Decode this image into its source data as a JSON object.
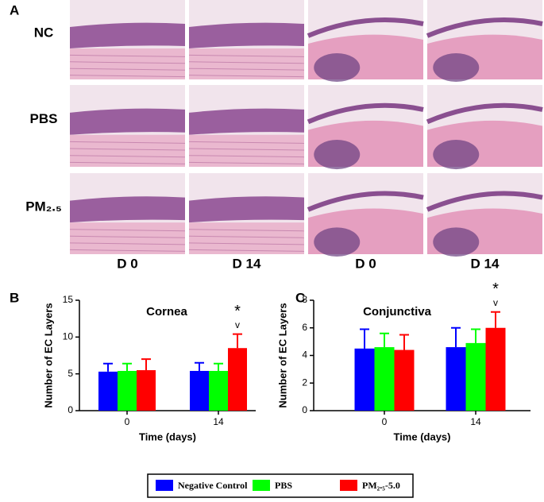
{
  "panel_a": {
    "letter": "A",
    "rows": [
      "NC",
      "PBS",
      "PM₂.₅"
    ],
    "columns": [
      "D 0",
      "D 14",
      "D 0",
      "D 14"
    ]
  },
  "chart_data": [
    {
      "type": "bar",
      "panel": "B",
      "title": "Cornea",
      "xlabel": "Time (days)",
      "ylabel": "Number of EC Layers",
      "categories": [
        "0",
        "14"
      ],
      "ylim": [
        0,
        15
      ],
      "yticks": [
        0,
        5,
        10,
        15
      ],
      "series": [
        {
          "name": "Negative Control",
          "color": "#0000ff",
          "values": [
            5.3,
            5.4
          ],
          "errors": [
            1.1,
            1.1
          ]
        },
        {
          "name": "PBS",
          "color": "#00ff00",
          "values": [
            5.4,
            5.4
          ],
          "errors": [
            1.0,
            1.0
          ]
        },
        {
          "name": "PM₂.₅-5.0",
          "color": "#ff0000",
          "values": [
            5.5,
            8.5
          ],
          "errors": [
            1.5,
            1.9
          ]
        }
      ],
      "annotations": [
        "*",
        "v"
      ]
    },
    {
      "type": "bar",
      "panel": "C",
      "title": "Conjunctiva",
      "xlabel": "Time (days)",
      "ylabel": "Number of EC Layers",
      "categories": [
        "0",
        "14"
      ],
      "ylim": [
        0,
        8
      ],
      "yticks": [
        0,
        2,
        4,
        6,
        8
      ],
      "series": [
        {
          "color": "#0000ff",
          "values": [
            4.5,
            4.6
          ],
          "errors": [
            1.4,
            1.4
          ]
        },
        {
          "color": "#00ff00",
          "values": [
            4.6,
            4.9
          ],
          "errors": [
            1.0,
            1.0
          ]
        },
        {
          "color": "#ff0000",
          "values": [
            4.4,
            6.0
          ],
          "errors": [
            1.1,
            1.15
          ]
        }
      ],
      "annotations": [
        "*",
        "v"
      ]
    }
  ]
}
